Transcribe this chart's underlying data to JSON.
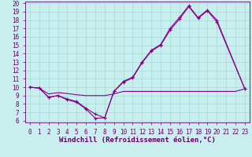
{
  "title": "",
  "xlabel": "Windchill (Refroidissement éolien,°C)",
  "background_color": "#c8eeee",
  "grid_color": "#aadddd",
  "line_color": "#880088",
  "xlim": [
    -0.5,
    23.5
  ],
  "ylim": [
    5.8,
    20.2
  ],
  "xticks": [
    0,
    1,
    2,
    3,
    4,
    5,
    6,
    7,
    8,
    9,
    10,
    11,
    12,
    13,
    14,
    15,
    16,
    17,
    18,
    19,
    20,
    21,
    22,
    23
  ],
  "yticks": [
    6,
    7,
    8,
    9,
    10,
    11,
    12,
    13,
    14,
    15,
    16,
    17,
    18,
    19,
    20
  ],
  "s1_x": [
    0,
    1,
    2,
    3,
    4,
    5,
    6,
    7,
    8,
    9,
    10,
    11,
    12,
    13,
    14,
    15,
    16,
    17,
    18,
    19,
    20,
    23
  ],
  "s1_y": [
    10,
    9.9,
    8.8,
    9.0,
    8.6,
    8.3,
    7.5,
    6.8,
    6.35,
    9.5,
    10.7,
    11.2,
    13.0,
    14.4,
    15.1,
    17.0,
    18.3,
    19.7,
    18.3,
    19.2,
    18.0,
    9.8
  ],
  "s2_x": [
    0,
    1,
    2,
    3,
    4,
    5,
    6,
    7,
    8,
    9,
    10,
    11,
    12,
    13,
    14,
    15,
    16,
    17,
    18,
    19,
    20,
    23
  ],
  "s2_y": [
    10,
    9.9,
    8.8,
    9.0,
    8.5,
    8.2,
    7.4,
    6.3,
    6.35,
    9.5,
    10.6,
    11.1,
    12.9,
    14.3,
    15.0,
    16.8,
    18.1,
    19.6,
    18.2,
    19.1,
    17.8,
    9.8
  ],
  "s3_x": [
    0,
    1,
    2,
    3,
    4,
    5,
    6,
    7,
    8,
    9,
    10,
    11,
    12,
    13,
    14,
    15,
    16,
    17,
    18,
    19,
    20,
    21,
    22,
    23
  ],
  "s3_y": [
    10,
    9.9,
    9.2,
    9.35,
    9.25,
    9.1,
    9.0,
    9.0,
    9.0,
    9.2,
    9.5,
    9.5,
    9.5,
    9.5,
    9.5,
    9.5,
    9.5,
    9.5,
    9.5,
    9.5,
    9.5,
    9.5,
    9.5,
    9.8
  ],
  "font_color": "#660066",
  "tick_fontsize": 5.5,
  "label_fontsize": 6.5
}
